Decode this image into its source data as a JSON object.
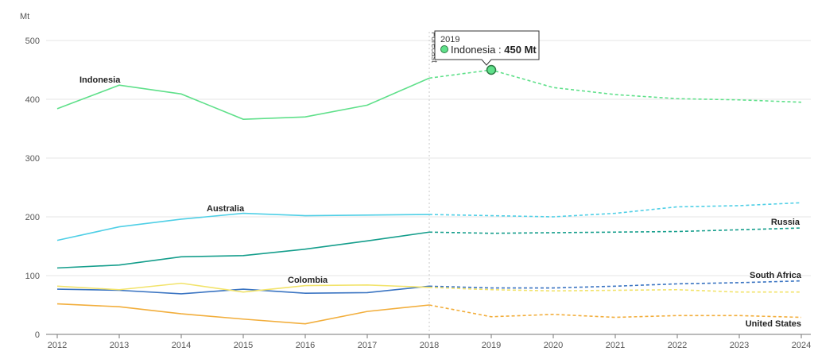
{
  "chart_data": {
    "type": "line",
    "unit_label": "Mt",
    "x": [
      2012,
      2013,
      2014,
      2015,
      2016,
      2017,
      2018,
      2019,
      2020,
      2021,
      2022,
      2023,
      2024
    ],
    "ylim": [
      0,
      500
    ],
    "yticks": [
      0,
      100,
      200,
      300,
      400,
      500
    ],
    "grid": true,
    "forecast_start": 2018,
    "forecast_label": "Forecast",
    "series": [
      {
        "name": "Indonesia",
        "color": "#5fe08a",
        "values": [
          384,
          424,
          409,
          366,
          370,
          390,
          436,
          450,
          420,
          408,
          401,
          399,
          395
        ]
      },
      {
        "name": "Australia",
        "color": "#4fcfe6",
        "values": [
          160,
          183,
          196,
          206,
          202,
          203,
          204,
          202,
          200,
          206,
          217,
          219,
          224
        ]
      },
      {
        "name": "Russia",
        "color": "#159e8c",
        "values": [
          113,
          118,
          132,
          134,
          145,
          159,
          174,
          172,
          173,
          174,
          175,
          178,
          181
        ]
      },
      {
        "name": "South Africa",
        "color": "#3a74c2",
        "values": [
          77,
          75,
          69,
          77,
          70,
          71,
          82,
          79,
          79,
          82,
          86,
          88,
          91
        ]
      },
      {
        "name": "Colombia",
        "color": "#f2e36a",
        "values": [
          82,
          76,
          87,
          72,
          83,
          84,
          80,
          76,
          74,
          75,
          76,
          72,
          72
        ]
      },
      {
        "name": "United States",
        "color": "#f2ae3c",
        "values": [
          52,
          47,
          35,
          26,
          18,
          39,
          50,
          30,
          34,
          29,
          32,
          32,
          29
        ]
      }
    ],
    "tooltip": {
      "year": "2019",
      "series": "Indonesia",
      "separator": ":",
      "value": "450 Mt"
    }
  }
}
